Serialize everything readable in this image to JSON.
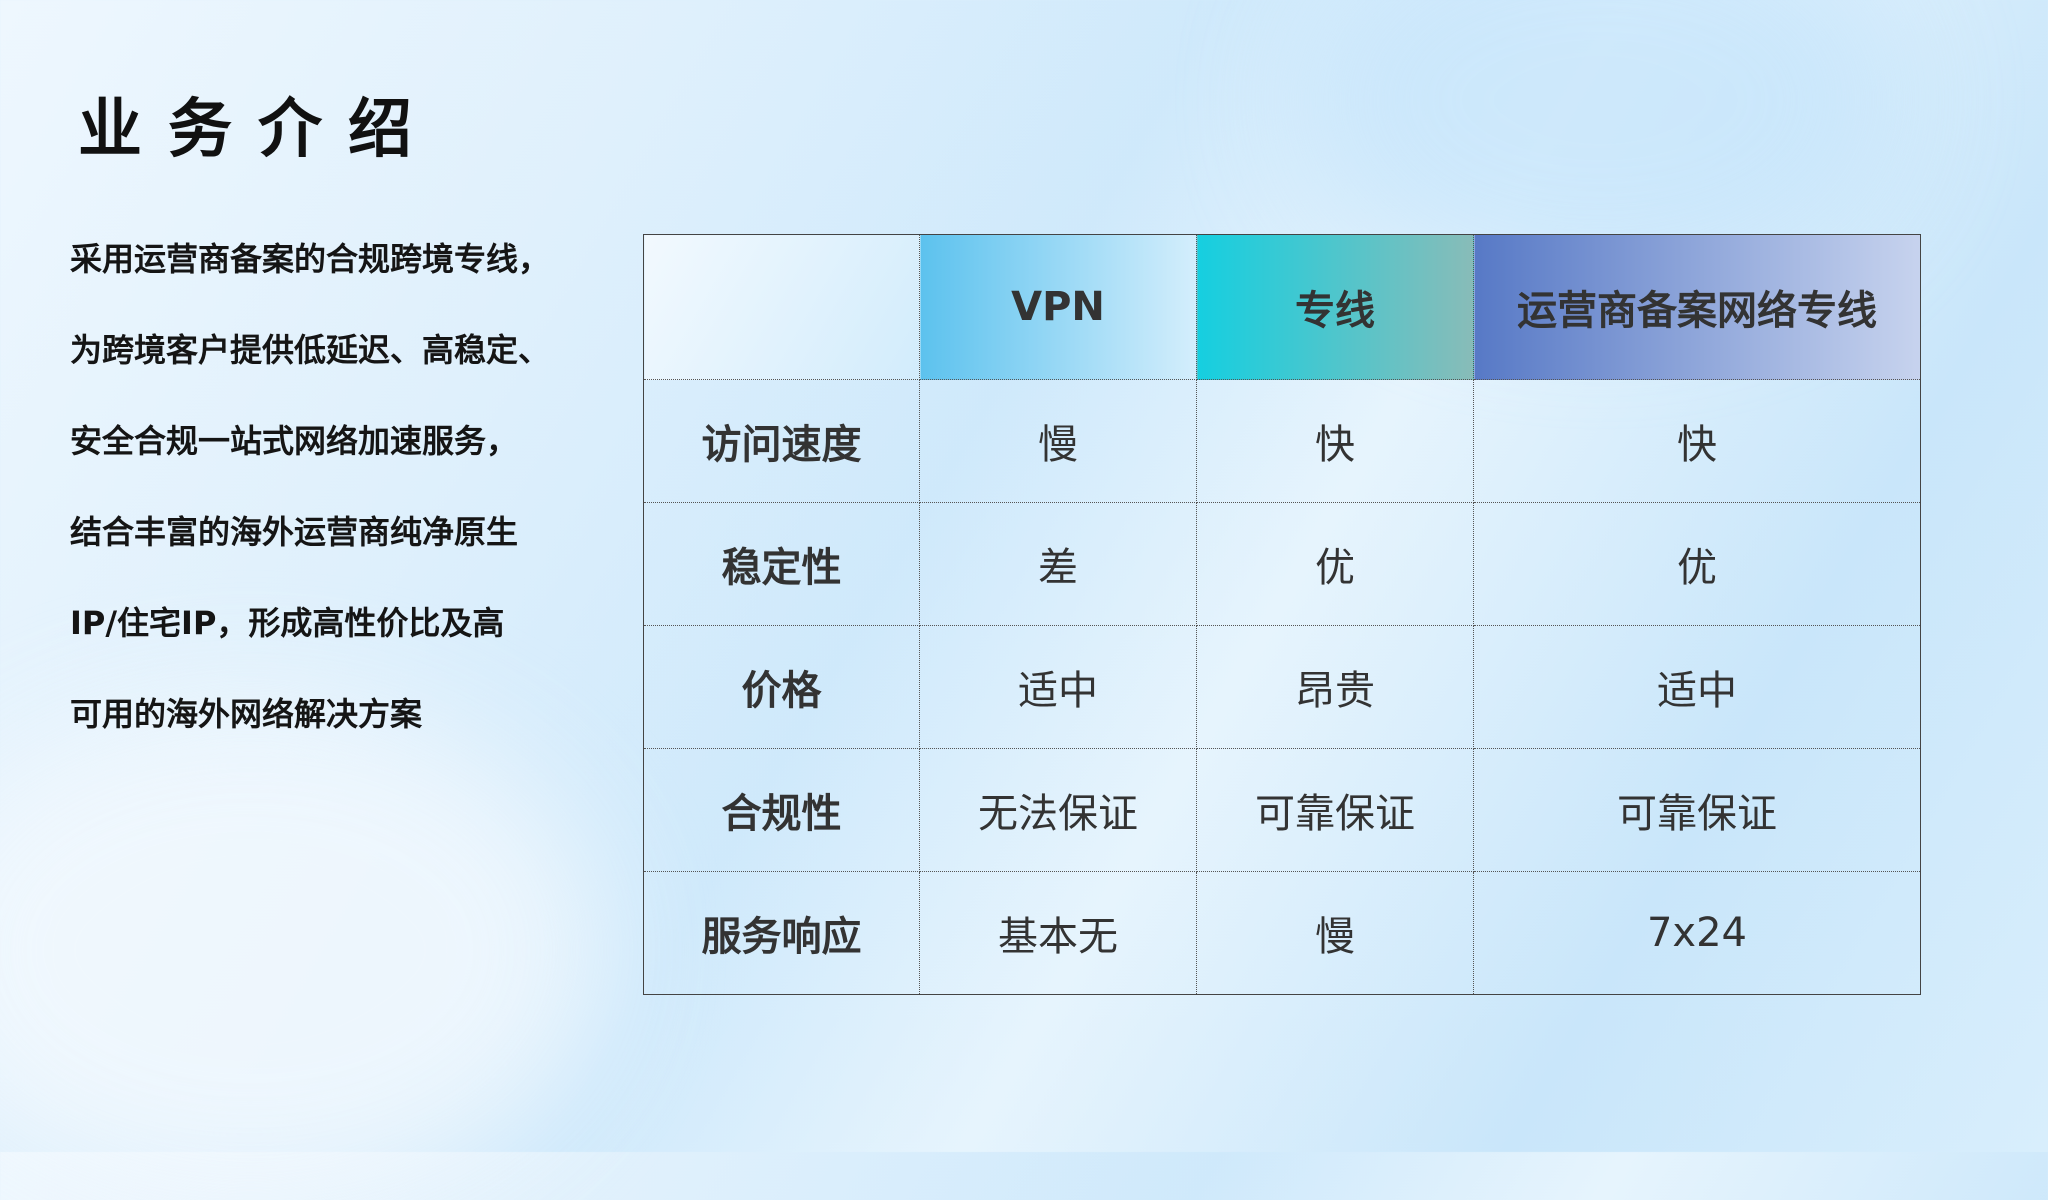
{
  "title": "业务介绍",
  "paragraph": [
    "采用运营商备案的合规跨境专线，",
    "为跨境客户提供低延迟、高稳定、",
    "安全合规一站式网络加速服务，",
    "结合丰富的海外运营商纯净原生",
    "IP/住宅IP，形成高性价比及高",
    "可用的海外网络解决方案"
  ],
  "table": {
    "headers": [
      "",
      "VPN",
      "专线",
      "运营商备案网络专线"
    ],
    "rows": [
      [
        "访问速度",
        "慢",
        "快",
        "快"
      ],
      [
        "稳定性",
        "差",
        "优",
        "优"
      ],
      [
        "价格",
        "适中",
        "昂贵",
        "适中"
      ],
      [
        "合规性",
        "无法保证",
        "可靠保证",
        "可靠保证"
      ],
      [
        "服务响应",
        "基本无",
        "慢",
        "7x24"
      ]
    ]
  },
  "colors": {
    "vpn_header": "#5cc2ee",
    "line_header": "#15cfe0",
    "operator_header": "#5779c6"
  }
}
